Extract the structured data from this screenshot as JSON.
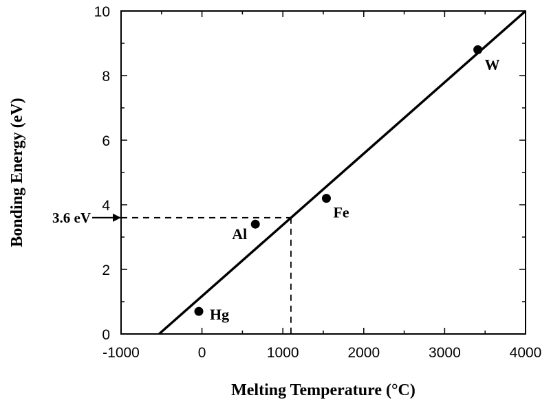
{
  "chart_data": {
    "type": "scatter",
    "title": "",
    "xlabel": "Melting Temperature (°C)",
    "ylabel": "Bonding Energy (eV)",
    "xlim": [
      -1000,
      4000
    ],
    "ylim": [
      0,
      10
    ],
    "xticks": [
      -1000,
      0,
      1000,
      2000,
      3000,
      4000
    ],
    "yticks": [
      0,
      2,
      4,
      6,
      8,
      10
    ],
    "grid": false,
    "points": [
      {
        "label": "Hg",
        "x": -39,
        "y": 0.7
      },
      {
        "label": "Al",
        "x": 660,
        "y": 3.4
      },
      {
        "label": "Fe",
        "x": 1538,
        "y": 4.2
      },
      {
        "label": "W",
        "x": 3410,
        "y": 8.8
      }
    ],
    "fit_line": {
      "x": [
        -530,
        4000
      ],
      "y": [
        0,
        10
      ]
    },
    "reference": {
      "label": "3.6 eV",
      "y": 3.6,
      "x": 1100
    }
  }
}
